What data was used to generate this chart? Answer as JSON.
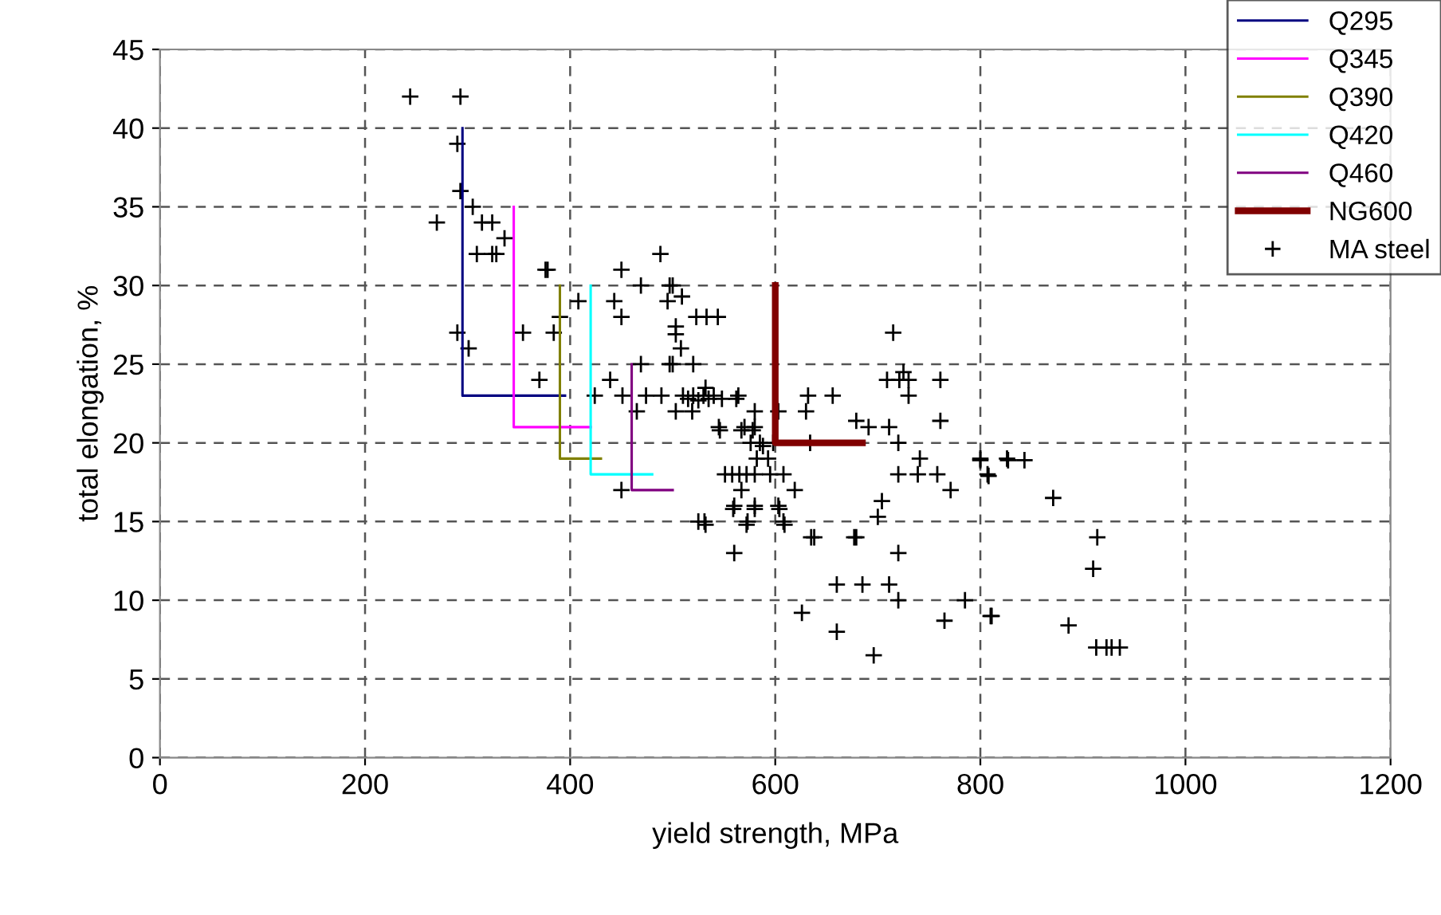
{
  "chart_data": {
    "type": "scatter",
    "xlabel": "yield strength, MPa",
    "ylabel": "total elongation, %",
    "xlim": [
      0,
      1200
    ],
    "xticks": [
      0,
      200,
      400,
      600,
      800,
      1000,
      1200
    ],
    "ylim": [
      0,
      45
    ],
    "yticks": [
      0,
      5,
      10,
      15,
      20,
      25,
      30,
      35,
      40,
      45
    ],
    "grid": true,
    "legend": "top right",
    "series": [
      {
        "name": "Q295",
        "type": "line",
        "color": "#000080",
        "line_style": "solid",
        "marker": "none",
        "x": [
          295,
          295,
          395
        ],
        "values": [
          40,
          23,
          23
        ]
      },
      {
        "name": "Q345",
        "type": "line",
        "color": "#ff00ff",
        "line_style": "solid",
        "marker": "none",
        "x": [
          345,
          345,
          420
        ],
        "values": [
          35,
          21,
          21
        ]
      },
      {
        "name": "Q390",
        "type": "line",
        "color": "#808000",
        "line_style": "solid",
        "marker": "none",
        "x": [
          390,
          390,
          430
        ],
        "values": [
          30,
          19,
          19
        ]
      },
      {
        "name": "Q420",
        "type": "line",
        "color": "#00ffff",
        "line_style": "solid",
        "marker": "none",
        "x": [
          420,
          420,
          480
        ],
        "values": [
          30,
          18,
          18
        ]
      },
      {
        "name": "Q460",
        "type": "line",
        "color": "#800080",
        "line_style": "solid",
        "marker": "none",
        "x": [
          460,
          460,
          500
        ],
        "values": [
          25,
          17,
          17
        ]
      },
      {
        "name": "NG600",
        "type": "line",
        "color": "#800000",
        "line_style": "solid",
        "marker": "none",
        "x": [
          600,
          600,
          685
        ],
        "values": [
          30,
          20,
          20
        ]
      },
      {
        "name": "MA steel",
        "color": "#000000",
        "marker": "cross",
        "x": [
          244,
          293,
          290,
          293,
          305,
          270,
          314,
          324,
          336,
          309,
          324,
          328,
          376,
          378,
          488,
          450,
          469,
          497,
          500,
          408,
          443,
          495,
          509,
          390,
          450,
          523,
          533,
          544,
          503,
          503,
          290,
          354,
          384,
          301,
          508,
          497,
          500,
          520,
          469,
          439,
          370,
          424,
          451,
          474,
          489,
          510,
          520,
          530,
          540,
          515,
          525,
          564,
          465,
          503,
          519,
          580,
          545,
          570,
          580,
          576,
          585,
          598,
          582,
          593,
          551,
          558,
          565,
          572,
          580,
          595,
          608,
          619,
          567,
          450,
          560,
          580,
          603,
          525,
          531,
          573,
          608,
          715,
          709,
          721,
          730,
          725,
          761,
          730,
          632,
          656,
          603,
          630,
          679,
          691,
          711,
          761,
          720,
          634,
          741,
          800,
          826,
          807,
          720,
          739,
          758,
          771,
          704,
          700,
          635,
          638,
          677,
          679,
          720,
          560,
          660,
          685,
          711,
          720,
          626,
          765,
          785,
          810,
          660,
          696,
          532,
          535,
          548,
          562,
          546,
          567,
          578,
          588,
          559,
          580,
          604,
          572,
          609,
          532,
          800,
          827,
          843,
          808,
          871,
          914,
          910,
          811,
          886,
          913,
          923,
          928,
          936
        ],
        "values": [
          42,
          42,
          39,
          36,
          35,
          34,
          34,
          34,
          33,
          32,
          32,
          32,
          31,
          31,
          32,
          31,
          30,
          30,
          30,
          29,
          29,
          29,
          29.3,
          28,
          28,
          28,
          28,
          28,
          27.4,
          26.9,
          27,
          27,
          27,
          26,
          26,
          25,
          25,
          25,
          25,
          24,
          24,
          23,
          23,
          23,
          23,
          23,
          23,
          23,
          23,
          22.8,
          22.7,
          23,
          22,
          22,
          22,
          22,
          21,
          21,
          21,
          20,
          20,
          20,
          19,
          19,
          18,
          18,
          18,
          18,
          18,
          18,
          18,
          17,
          17,
          17,
          16,
          16,
          16,
          15,
          15,
          15,
          15,
          27,
          24,
          24,
          24,
          24.5,
          24,
          23,
          23,
          23,
          22,
          22,
          21.4,
          21,
          21,
          21.4,
          20,
          20,
          19,
          19,
          19,
          18,
          18,
          18,
          18,
          17,
          16.3,
          15.3,
          14,
          14,
          14,
          14,
          13,
          13,
          11,
          11,
          11,
          10,
          9.2,
          8.7,
          10,
          9,
          8,
          6.5,
          23.5,
          22.8,
          22.8,
          22.8,
          20.8,
          20.8,
          20.8,
          19.8,
          15.8,
          15.8,
          15.8,
          14.8,
          14.8,
          14.8,
          18.9,
          18.9,
          18.9,
          17.9,
          16.5,
          14,
          12,
          9,
          8.4,
          7,
          7,
          7,
          7
        ]
      }
    ]
  }
}
